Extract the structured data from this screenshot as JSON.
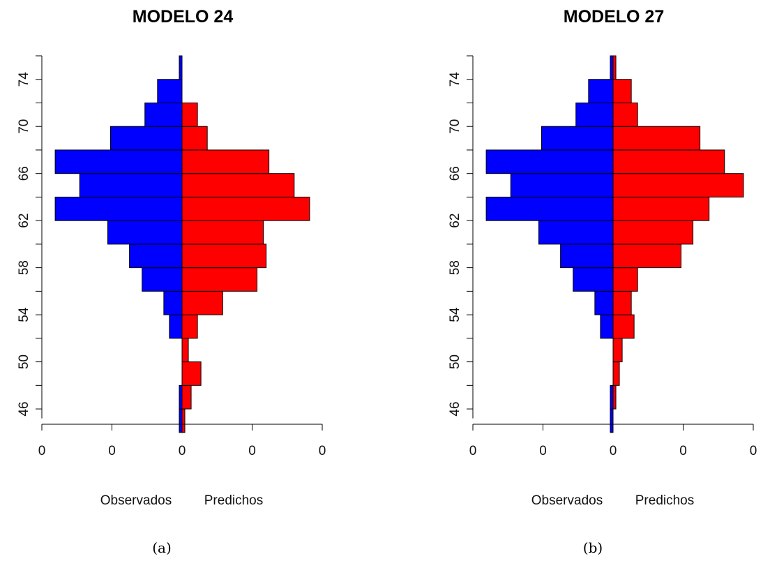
{
  "chart_data": [
    {
      "type": "bar",
      "orientation": "horizontal-pyramid",
      "title": "MODELO 24",
      "caption": "(a)",
      "xlabel_left": "Observados",
      "xlabel_right": "Predichos",
      "x_tick_labels": [
        "0",
        "0",
        "0",
        "0",
        "0"
      ],
      "y_tick_labels": [
        "46",
        "50",
        "54",
        "58",
        "62",
        "66",
        "70",
        "74"
      ],
      "ylim": [
        44.7,
        76
      ],
      "xlim": [
        -20,
        20
      ],
      "bin_width": 2,
      "bins": [
        45,
        47,
        49,
        51,
        53,
        55,
        57,
        59,
        61,
        63,
        65,
        67,
        69,
        71,
        73,
        75
      ],
      "series": [
        {
          "name": "Observados",
          "color": "#0000ff",
          "side": "left",
          "values": [
            0.4,
            0.4,
            0,
            0,
            1.8,
            2.6,
            5.7,
            7.5,
            10.6,
            18.1,
            14.6,
            18.1,
            10.2,
            5.3,
            3.5,
            0.4
          ]
        },
        {
          "name": "Predichos",
          "color": "#ff0000",
          "side": "right",
          "values": [
            0.4,
            1.3,
            2.7,
            0.9,
            2.2,
            5.8,
            10.7,
            12.0,
            11.6,
            18.2,
            16.0,
            12.4,
            3.6,
            2.2,
            0,
            0
          ]
        }
      ]
    },
    {
      "type": "bar",
      "orientation": "horizontal-pyramid",
      "title": "MODELO 27",
      "caption": "(b)",
      "xlabel_left": "Observados",
      "xlabel_right": "Predichos",
      "x_tick_labels": [
        "0",
        "0",
        "0",
        "0",
        "0"
      ],
      "y_tick_labels": [
        "46",
        "50",
        "54",
        "58",
        "62",
        "66",
        "70",
        "74"
      ],
      "ylim": [
        44.7,
        76
      ],
      "xlim": [
        -20,
        20
      ],
      "bin_width": 2,
      "bins": [
        45,
        47,
        49,
        51,
        53,
        55,
        57,
        59,
        61,
        63,
        65,
        67,
        69,
        71,
        73,
        75
      ],
      "series": [
        {
          "name": "Observados",
          "color": "#0000ff",
          "side": "left",
          "values": [
            0.4,
            0.4,
            0,
            0,
            1.8,
            2.6,
            5.7,
            7.5,
            10.6,
            18.1,
            14.6,
            18.1,
            10.2,
            5.3,
            3.5,
            0.4
          ]
        },
        {
          "name": "Predichos",
          "color": "#ff0000",
          "side": "right",
          "values": [
            0,
            0.4,
            0.9,
            1.3,
            3.0,
            2.6,
            3.5,
            9.7,
            11.4,
            13.7,
            18.6,
            15.9,
            12.4,
            3.5,
            2.6,
            0.4
          ]
        }
      ]
    }
  ]
}
